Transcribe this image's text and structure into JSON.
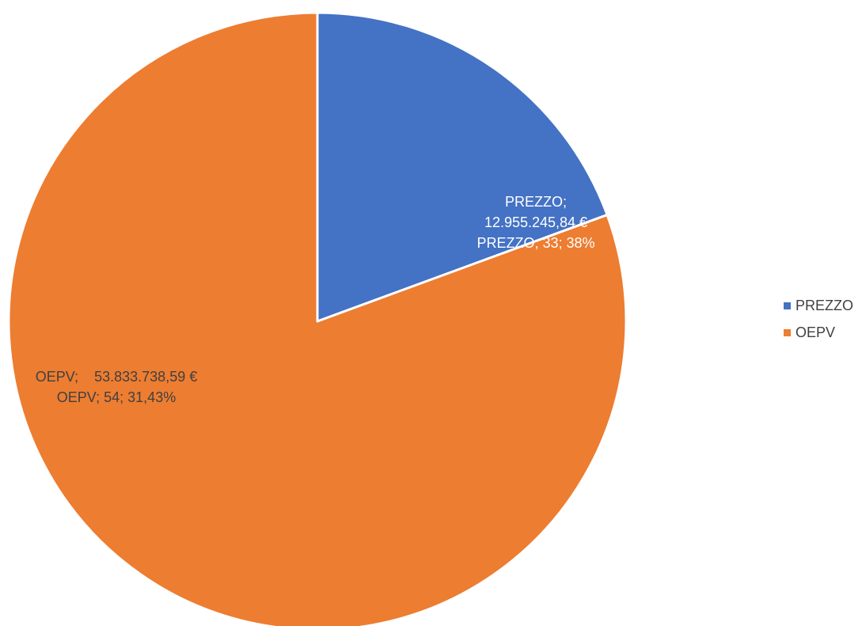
{
  "chart_data": {
    "type": "pie",
    "categories": [
      "PREZZO",
      "OEPV"
    ],
    "values": [
      12955245.84,
      53833738.59
    ],
    "colors": [
      "#4472C4",
      "#ED7D31"
    ],
    "slices": [
      {
        "name": "PREZZO",
        "value": 12955245.84,
        "color": "#4472C4",
        "label_lines": [
          "PREZZO;",
          "12.955.245,84 €",
          "PREZZO; 33; 38%"
        ],
        "label_color": "#ffffff"
      },
      {
        "name": "OEPV",
        "value": 53833738.59,
        "color": "#ED7D31",
        "label_lines": [
          "OEPV;    53.833.738,59 €",
          "OEPV; 54; 31,43%"
        ],
        "label_color": "#404040"
      }
    ],
    "legend": {
      "position": "right",
      "items": [
        {
          "label": "PREZZO",
          "color": "#4472C4"
        },
        {
          "label": "OEPV",
          "color": "#ED7D31"
        }
      ]
    },
    "title": ""
  }
}
